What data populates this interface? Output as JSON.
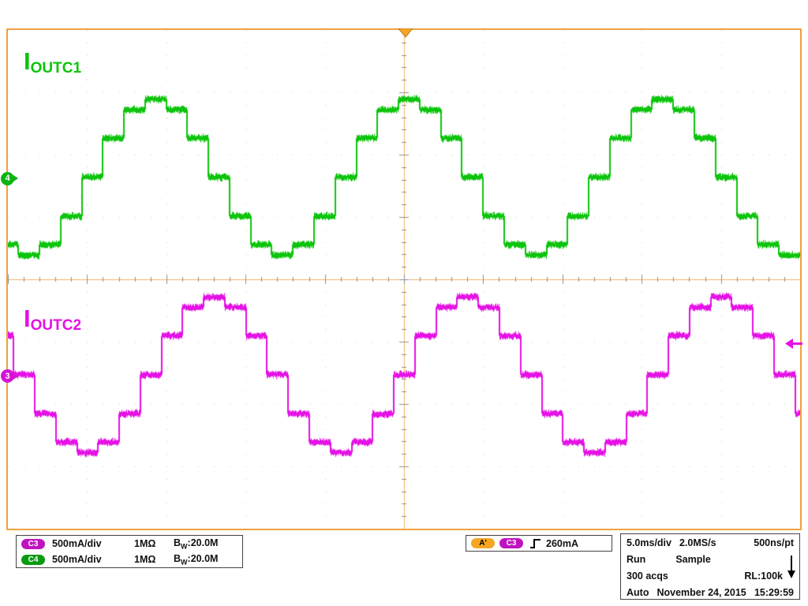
{
  "display": {
    "frame_color": "#efa23f",
    "background": "#ffffff",
    "grid_dot_color": "#c9c9c9",
    "centerline_color": "#f2b45f",
    "tick_color": "#8f8f8f"
  },
  "waveform_labels": [
    {
      "main": "I",
      "sub": "OUTC1",
      "color": "#0cc40c"
    },
    {
      "main": "I",
      "sub": "OUTC2",
      "color": "#e511e5"
    }
  ],
  "markers": {
    "ch4": {
      "label": "4",
      "color": "#0ab411"
    },
    "ch3": {
      "label": "3",
      "color": "#d512d5"
    },
    "trigger_position": {
      "color": "#f5a623"
    },
    "trigger_level": {
      "color": "#e511e5"
    }
  },
  "chart_data": {
    "type": "line",
    "title": "Oscilloscope capture: stepped sinusoidal output currents IOUTC1 (C4, green) and IOUTC2 (C3, magenta)",
    "x": {
      "label": "time",
      "units": "ms",
      "div": 5.0,
      "divisions": 10,
      "range_ms": [
        0,
        50
      ]
    },
    "y": {
      "label": "current",
      "units": "mA",
      "divisions": 8,
      "mA_per_div": 500
    },
    "grid": "dotted divisions, center crosshair with minor ticks",
    "series": [
      {
        "name": "IOUTC1",
        "channel": "C4",
        "color": "#0cc40c",
        "mA_per_div": 500,
        "waveform": "stepped_sine",
        "steps_per_period": 12,
        "period_ms": 16.0,
        "amplitude_mA": 625,
        "peak_time_ms": 9.3,
        "center_offset_div": 1.64,
        "step_levels_mA": [
          0,
          313,
          541,
          625,
          541,
          313,
          0,
          -313,
          -541,
          -625,
          -541,
          -313
        ]
      },
      {
        "name": "IOUTC2",
        "channel": "C3",
        "color": "#e511e5",
        "mA_per_div": 500,
        "waveform": "stepped_sine",
        "steps_per_period": 12,
        "period_ms": 16.0,
        "amplitude_mA": 625,
        "peak_time_ms": 13.0,
        "center_offset_div": -1.53,
        "step_levels_mA": [
          0,
          313,
          541,
          625,
          541,
          313,
          0,
          -313,
          -541,
          -625,
          -541,
          -313
        ]
      }
    ],
    "trigger": {
      "source": "C3",
      "level_mA": 260,
      "slope": "rising",
      "position_div": 5
    }
  },
  "readouts": {
    "channels": [
      {
        "badge": "C3",
        "badge_color": "#c013c0",
        "scale": "500mA/div",
        "impedance": "1MΩ",
        "bw_main": "B",
        "bw_sub": "W",
        "bw_value": ":20.0M"
      },
      {
        "badge": "C4",
        "badge_color": "#0a9a11",
        "scale": "500mA/div",
        "impedance": "1MΩ",
        "bw_main": "B",
        "bw_sub": "W",
        "bw_value": ":20.0M"
      }
    ],
    "trigger": {
      "badge_a": "A'",
      "badge_a_color": "#f5a623",
      "badge_src": "C3",
      "badge_src_color": "#c013c0",
      "level": "260mA"
    },
    "acquisition": {
      "timebase": "5.0ms/div",
      "sample_rate": "2.0MS/s",
      "resolution": "500ns/pt",
      "run_state": "Run",
      "acq_mode": "Sample",
      "acq_count": "300 acqs",
      "record_length": "RL:100k",
      "trig_mode": "Auto",
      "date": "November 24, 2015",
      "time": "15:29:59"
    }
  }
}
